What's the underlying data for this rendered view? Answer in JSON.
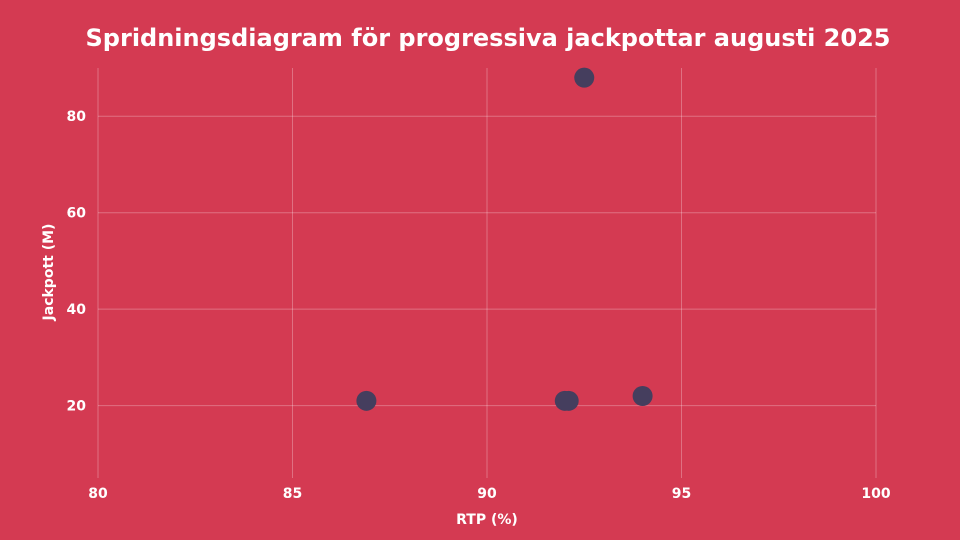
{
  "chart_data": {
    "type": "scatter",
    "title": "Spridningsdiagram för progressiva jackpottar augusti 2025",
    "xlabel": "RTP (%)",
    "ylabel": "Jackpott (M)",
    "xlim": [
      80,
      100
    ],
    "ylim": [
      5,
      90
    ],
    "xticks": [
      80,
      85,
      90,
      95,
      100
    ],
    "yticks": [
      20,
      40,
      60,
      80
    ],
    "grid": true,
    "legend": "none",
    "points": [
      {
        "x": 86.9,
        "y": 21
      },
      {
        "x": 92.0,
        "y": 21
      },
      {
        "x": 92.1,
        "y": 21
      },
      {
        "x": 92.5,
        "y": 88
      },
      {
        "x": 94.0,
        "y": 22
      }
    ]
  },
  "colors": {
    "background": "#d43a52",
    "point": "#453e5e",
    "text": "#ffffff"
  }
}
